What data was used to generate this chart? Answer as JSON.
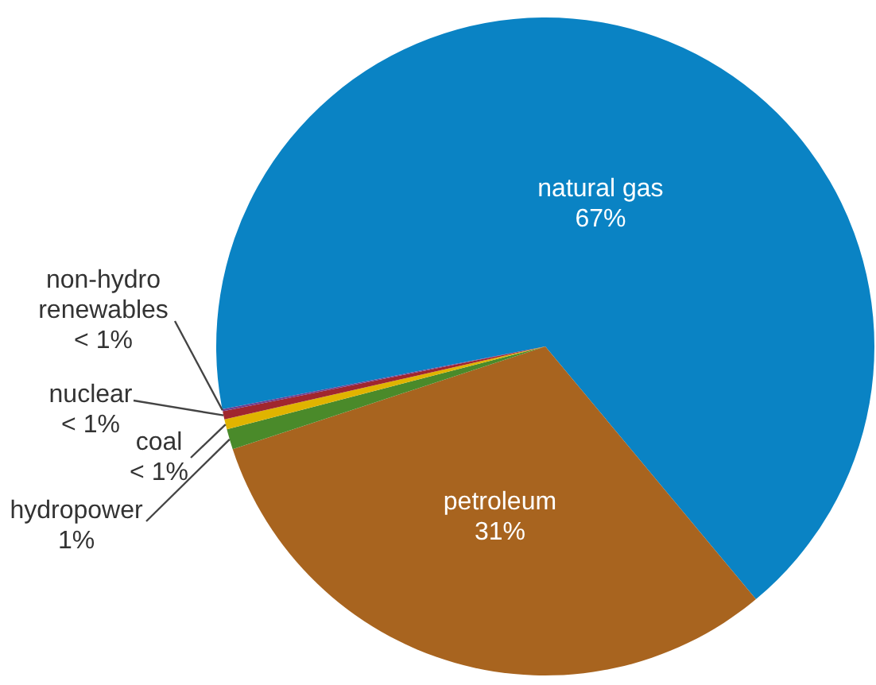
{
  "chart_data": {
    "type": "pie",
    "categories": [
      "natural gas",
      "petroleum",
      "hydropower",
      "coal",
      "nuclear",
      "non-hydro renewables"
    ],
    "values": [
      67,
      31,
      1,
      0.5,
      0.4,
      0.1
    ],
    "value_labels": [
      "67%",
      "31%",
      "1%",
      "< 1%",
      "< 1%",
      "< 1%"
    ],
    "colors": [
      "#0a83c4",
      "#a8641f",
      "#4a8a2a",
      "#e0b400",
      "#a0262e",
      "#6d3f8f"
    ]
  }
}
